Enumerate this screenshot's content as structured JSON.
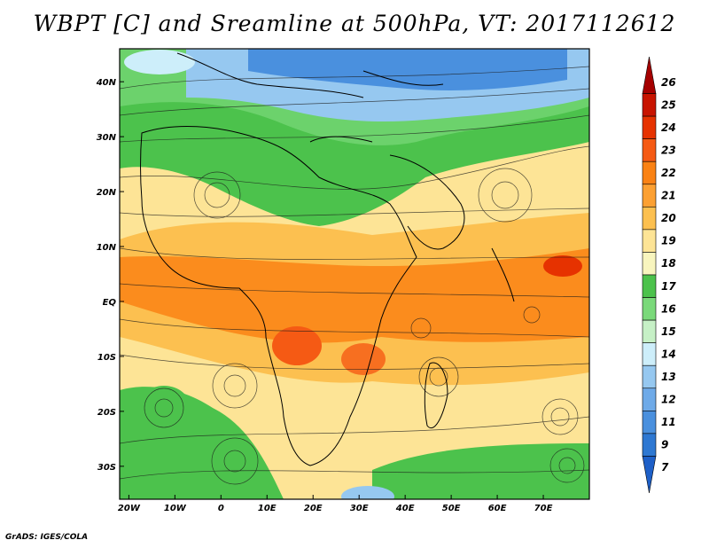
{
  "title": "WBPT [C] and Sreamline at 500hPa, VT: 2017112612",
  "credit": "GrADS: IGES/COLA",
  "x_axis_labels": [
    "20W",
    "10W",
    "0",
    "10E",
    "20E",
    "30E",
    "40E",
    "50E",
    "60E",
    "70E"
  ],
  "x_axis_values": [
    -20,
    -10,
    0,
    10,
    20,
    30,
    40,
    50,
    60,
    70
  ],
  "y_axis_labels": [
    "40N",
    "30N",
    "20N",
    "10N",
    "EQ",
    "10S",
    "20S",
    "30S"
  ],
  "y_axis_values": [
    40,
    30,
    20,
    10,
    0,
    -10,
    -20,
    -30
  ],
  "lon_range": [
    -22,
    80
  ],
  "lat_range": [
    -36,
    46
  ],
  "colorbar": {
    "labels": [
      "26",
      "25",
      "24",
      "23",
      "22",
      "21",
      "20",
      "19",
      "18",
      "17",
      "16",
      "15",
      "14",
      "13",
      "12",
      "11",
      "9",
      "7"
    ],
    "colors": [
      "#a50000",
      "#c81400",
      "#e63200",
      "#f55a14",
      "#fa8214",
      "#fca032",
      "#fcc050",
      "#fde496",
      "#f8f5be",
      "#4cc24c",
      "#7ad97a",
      "#c6f0c6",
      "#cdeefa",
      "#96c8f0",
      "#6eaae8",
      "#4a90de",
      "#2e78d2",
      "#1e60c8"
    ]
  },
  "regions": {
    "north_band": "blue",
    "subtropical_band": "green",
    "tropics": "orange"
  }
}
